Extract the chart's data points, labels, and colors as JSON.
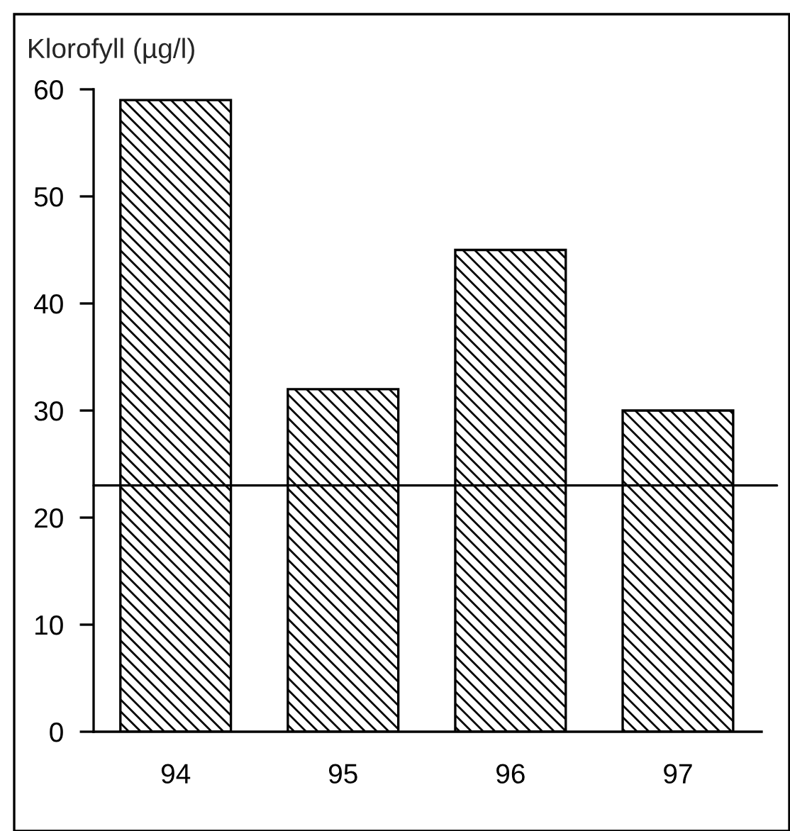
{
  "chart_data": {
    "type": "bar",
    "ylabel": "Klorofyll (µg/l)",
    "categories": [
      "94",
      "95",
      "96",
      "97"
    ],
    "values": [
      59,
      32,
      45,
      30
    ],
    "color": "#000000",
    "ylim": [
      0,
      60
    ],
    "yticks": [
      0,
      10,
      20,
      30,
      40,
      50,
      60
    ],
    "grid": false,
    "ref_lines": [
      {
        "axis": "y",
        "value": 23,
        "color": "#000000"
      }
    ]
  }
}
